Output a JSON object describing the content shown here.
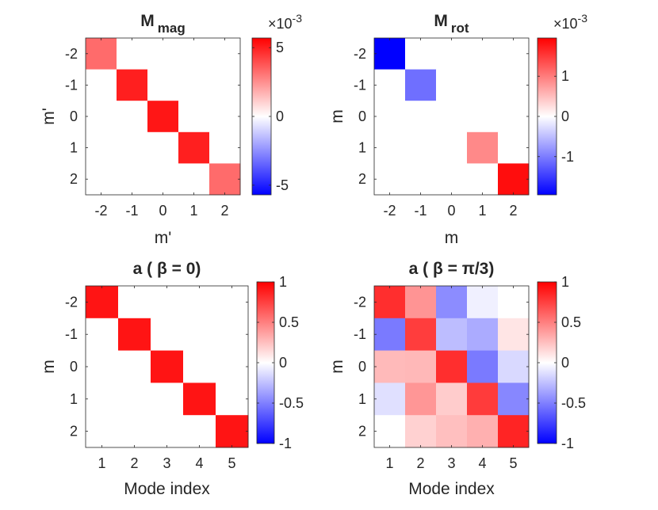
{
  "figure": {
    "colormap": {
      "low": "#0000ff",
      "mid": "#ffffff",
      "high": "#ff0000"
    }
  },
  "chart_data": [
    {
      "type": "heatmap",
      "title": "M",
      "title_subscript": "mag",
      "xlabel": "m'",
      "ylabel": "m'",
      "xticks": [
        "-2",
        "-1",
        "0",
        "1",
        "2"
      ],
      "yticks": [
        "-2",
        "-1",
        "0",
        "1",
        "2"
      ],
      "clim": [
        -0.0057,
        0.0057
      ],
      "colorbar_ticks": [
        -0.005,
        0,
        0.005
      ],
      "colorbar_tick_labels": [
        "-5",
        "0",
        "5"
      ],
      "colorbar_exponent": "×10",
      "colorbar_exponent_power": "-3",
      "values": [
        [
          0.0033,
          0,
          0,
          0,
          0
        ],
        [
          0,
          0.005,
          0,
          0,
          0
        ],
        [
          0,
          0,
          0.0052,
          0,
          0
        ],
        [
          0,
          0,
          0,
          0.005,
          0
        ],
        [
          0,
          0,
          0,
          0,
          0.0033
        ]
      ]
    },
    {
      "type": "heatmap",
      "title": "M",
      "title_subscript": "rot",
      "xlabel": "m",
      "ylabel": "m",
      "xticks": [
        "-2",
        "-1",
        "0",
        "1",
        "2"
      ],
      "yticks": [
        "-2",
        "-1",
        "0",
        "1",
        "2"
      ],
      "clim": [
        -0.00195,
        0.00195
      ],
      "colorbar_ticks": [
        -0.001,
        0,
        0.001
      ],
      "colorbar_tick_labels": [
        "-1",
        "0",
        "1"
      ],
      "colorbar_exponent": "×10",
      "colorbar_exponent_power": "-3",
      "values": [
        [
          -0.00195,
          0,
          0,
          0,
          0
        ],
        [
          0,
          -0.0011,
          0,
          0,
          0
        ],
        [
          0,
          0,
          0,
          0,
          0
        ],
        [
          0,
          0,
          0,
          0.0009,
          0
        ],
        [
          0,
          0,
          0,
          0,
          0.00185
        ]
      ]
    },
    {
      "type": "heatmap",
      "title": "a (  β = 0)",
      "xlabel": "Mode index",
      "ylabel": "m",
      "xticks": [
        "1",
        "2",
        "3",
        "4",
        "5"
      ],
      "yticks": [
        "-2",
        "-1",
        "0",
        "1",
        "2"
      ],
      "clim": [
        -1,
        1
      ],
      "colorbar_ticks": [
        -1,
        -0.5,
        0,
        0.5,
        1
      ],
      "colorbar_tick_labels": [
        "-1",
        "-0.5",
        "0",
        "0.5",
        "1"
      ],
      "values": [
        [
          0.92,
          0,
          0,
          0,
          0
        ],
        [
          0,
          0.92,
          0,
          0,
          0
        ],
        [
          0,
          0,
          0.92,
          0,
          0
        ],
        [
          0,
          0,
          0,
          0.92,
          0
        ],
        [
          0,
          0,
          0,
          0,
          0.92
        ]
      ]
    },
    {
      "type": "heatmap",
      "title": "a (  β =   π/3)",
      "xlabel": "Mode index",
      "ylabel": "m",
      "xticks": [
        "1",
        "2",
        "3",
        "4",
        "5"
      ],
      "yticks": [
        "-2",
        "-1",
        "0",
        "1",
        "2"
      ],
      "clim": [
        -1,
        1
      ],
      "colorbar_ticks": [
        -1,
        -0.5,
        0,
        0.5,
        1
      ],
      "colorbar_tick_labels": [
        "-1",
        "-0.5",
        "0",
        "0.5",
        "1"
      ],
      "values": [
        [
          0.82,
          0.42,
          -0.45,
          -0.06,
          0.0
        ],
        [
          -0.52,
          0.76,
          -0.26,
          -0.33,
          0.1
        ],
        [
          0.27,
          0.28,
          0.82,
          -0.52,
          -0.15
        ],
        [
          -0.12,
          0.41,
          0.2,
          0.77,
          -0.47
        ],
        [
          0.0,
          0.18,
          0.25,
          0.31,
          0.86
        ]
      ]
    }
  ]
}
